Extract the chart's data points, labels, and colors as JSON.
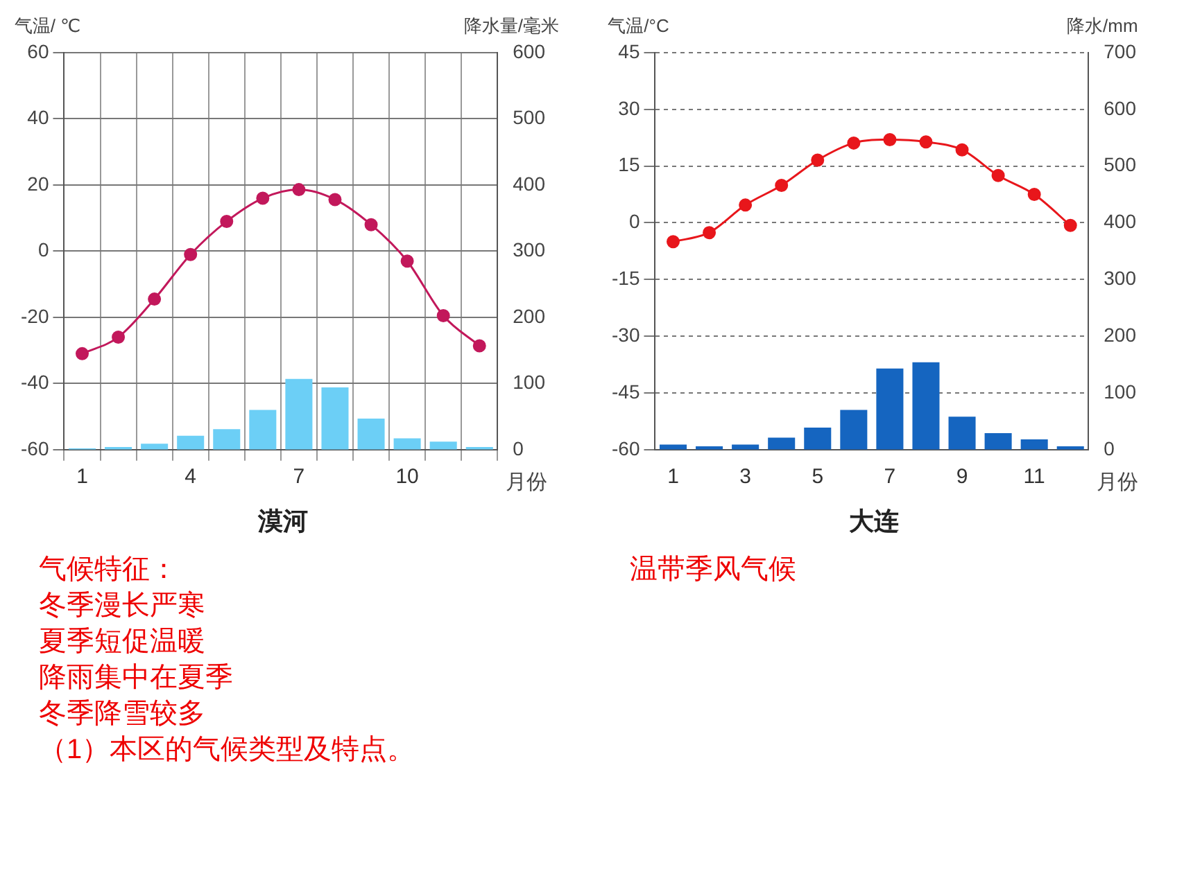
{
  "chart_data": [
    {
      "type": "bar",
      "title": "漠河",
      "xlabel": "月份",
      "ylabel": "气温/ ℃",
      "y2label": "降水量/毫米",
      "categories": [
        "1",
        null,
        null,
        "4",
        null,
        null,
        "7",
        null,
        null,
        "10",
        null,
        null
      ],
      "series": [
        {
          "type": "line",
          "color": "#c2185b",
          "values": [
            -31,
            -26,
            -14.5,
            -1,
            9,
            16,
            18.6,
            15.6,
            8,
            -3,
            -19.5,
            -28.6
          ]
        },
        {
          "axis": "y2",
          "color": "#6ccff6",
          "values": [
            2,
            4,
            9,
            21,
            31,
            60,
            107,
            94,
            47,
            17,
            12,
            4
          ]
        }
      ],
      "ylim": [
        -60,
        60
      ],
      "yticks": [
        -60,
        -40,
        -20,
        0,
        20,
        40,
        60
      ],
      "y2lim": [
        0,
        600
      ],
      "y2ticks": [
        0,
        100,
        200,
        300,
        400,
        500,
        600
      ],
      "grid": true,
      "marker": "circle",
      "annotations": [
        "气候特征：",
        "冬季漫长严寒",
        "夏季短促温暖",
        "降雨集中在夏季",
        "冬季降雪较多",
        "（1）本区的气候类型及特点。"
      ]
    },
    {
      "type": "bar",
      "title": "大连",
      "xlabel": "月份",
      "ylabel": "气温/°C",
      "y2label": "降水/mm",
      "categories": [
        "1",
        null,
        "3",
        null,
        "5",
        null,
        "7",
        null,
        "9",
        null,
        "11",
        null
      ],
      "series": [
        {
          "type": "line",
          "color": "#e8161b",
          "values": [
            -5,
            -2.6,
            4.7,
            9.9,
            16.6,
            21.1,
            22,
            21.4,
            19.3,
            12.5,
            7.5,
            -0.7
          ]
        },
        {
          "axis": "y2",
          "color": "#1565c0",
          "values": [
            9,
            6,
            9,
            21,
            39,
            70,
            143,
            154,
            58,
            29,
            18,
            6
          ]
        }
      ],
      "ylim": [
        -60,
        45
      ],
      "yticks": [
        -60,
        -45,
        -30,
        -15,
        0,
        15,
        30,
        45
      ],
      "y2lim": [
        0,
        700
      ],
      "y2ticks": [
        0,
        100,
        200,
        300,
        400,
        500,
        600,
        700
      ],
      "grid": "y",
      "marker": "circle",
      "annotations": [
        "温带季风气候"
      ]
    }
  ]
}
